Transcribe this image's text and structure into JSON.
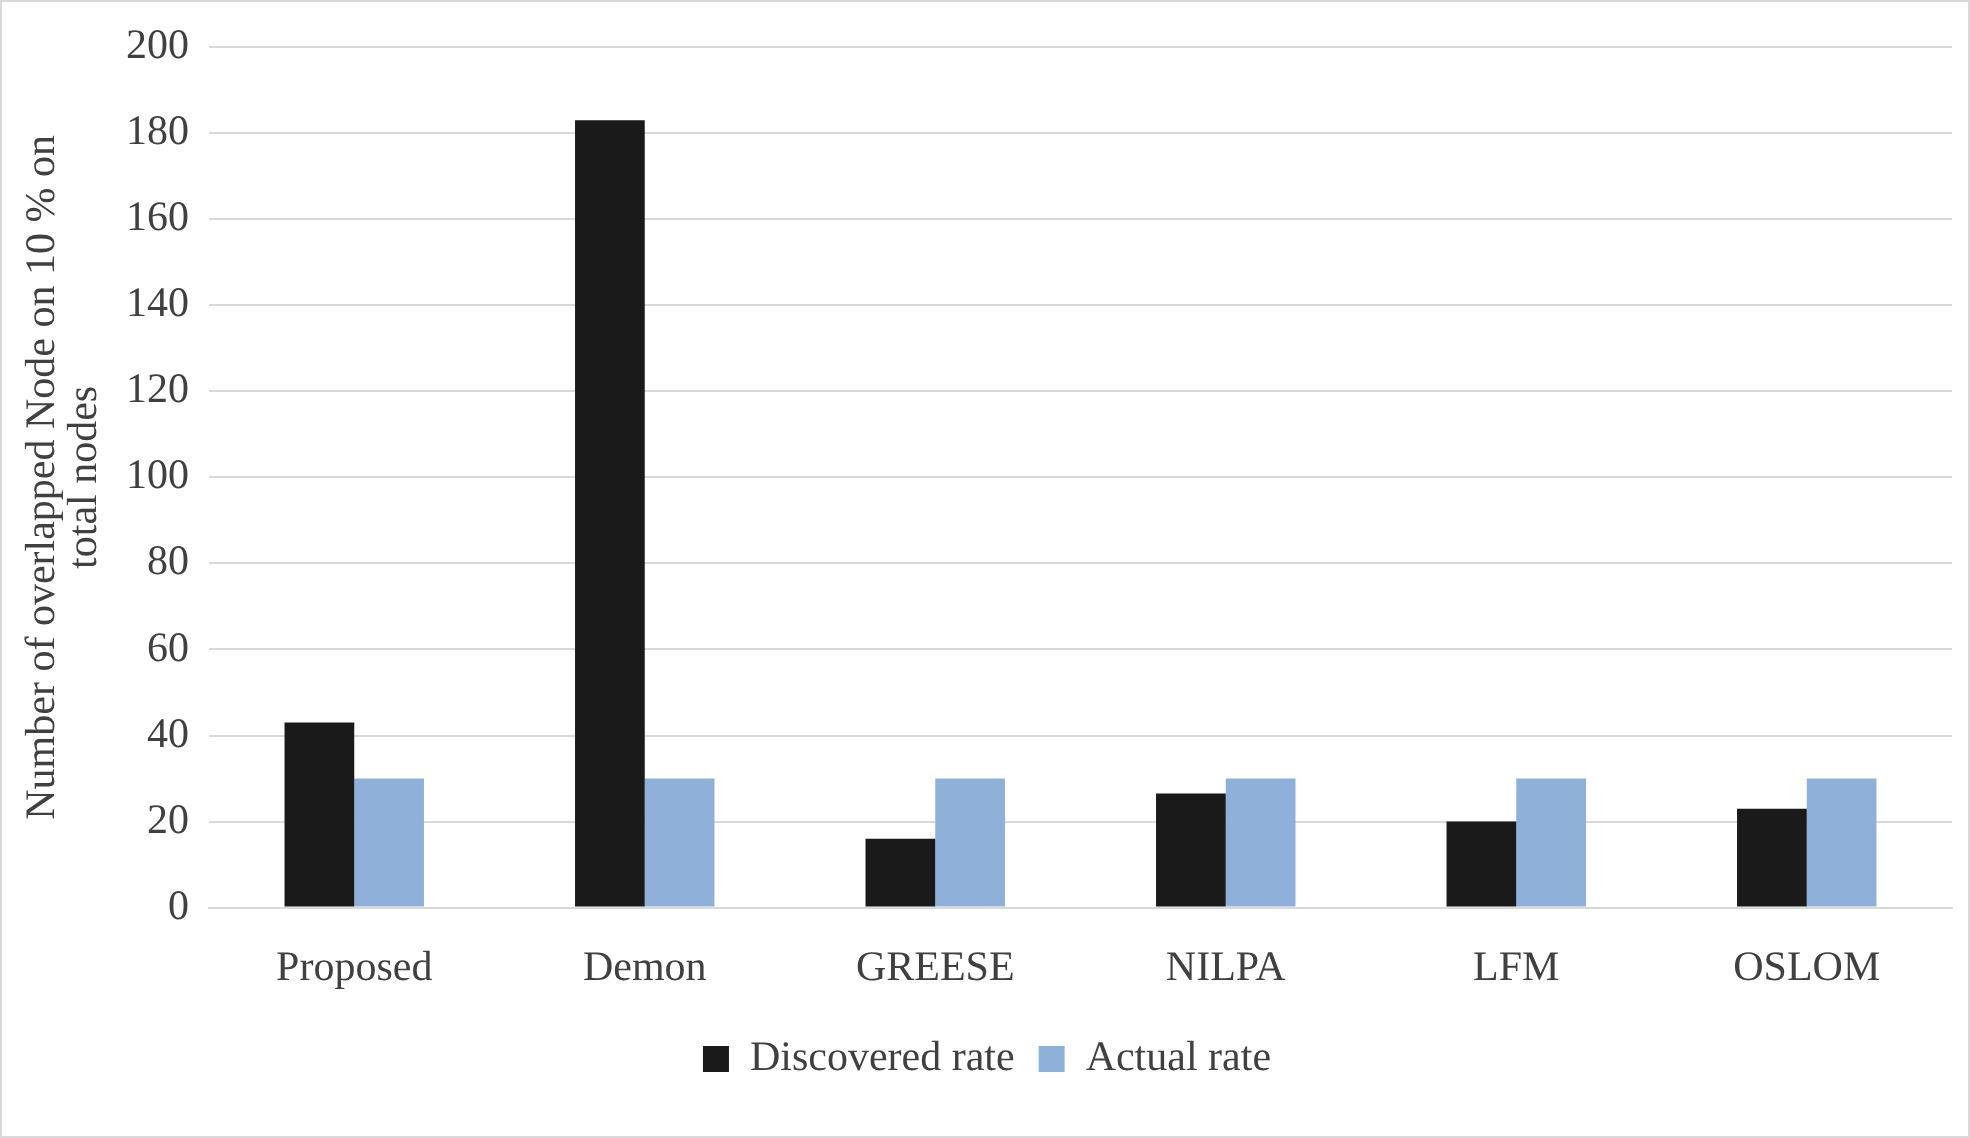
{
  "chart_data": {
    "type": "bar",
    "ylabel": "Number of overlapped Node on 10 % on total nodes",
    "categories": [
      "Proposed",
      "Demon",
      "GREESE",
      "NILPA",
      "LFM",
      "OSLOM"
    ],
    "series": [
      {
        "name": "Discovered rate",
        "color": "#1a1a1a",
        "values": [
          43,
          183,
          16,
          26.5,
          20,
          23
        ]
      },
      {
        "name": "Actual rate",
        "color": "#8fb0d8",
        "values": [
          30,
          30,
          30,
          30,
          30,
          30
        ]
      }
    ],
    "ylim": [
      0,
      200
    ],
    "yticks": [
      0,
      20,
      40,
      60,
      80,
      100,
      120,
      140,
      160,
      180,
      200
    ],
    "grid": "y",
    "legend": "bottom"
  }
}
